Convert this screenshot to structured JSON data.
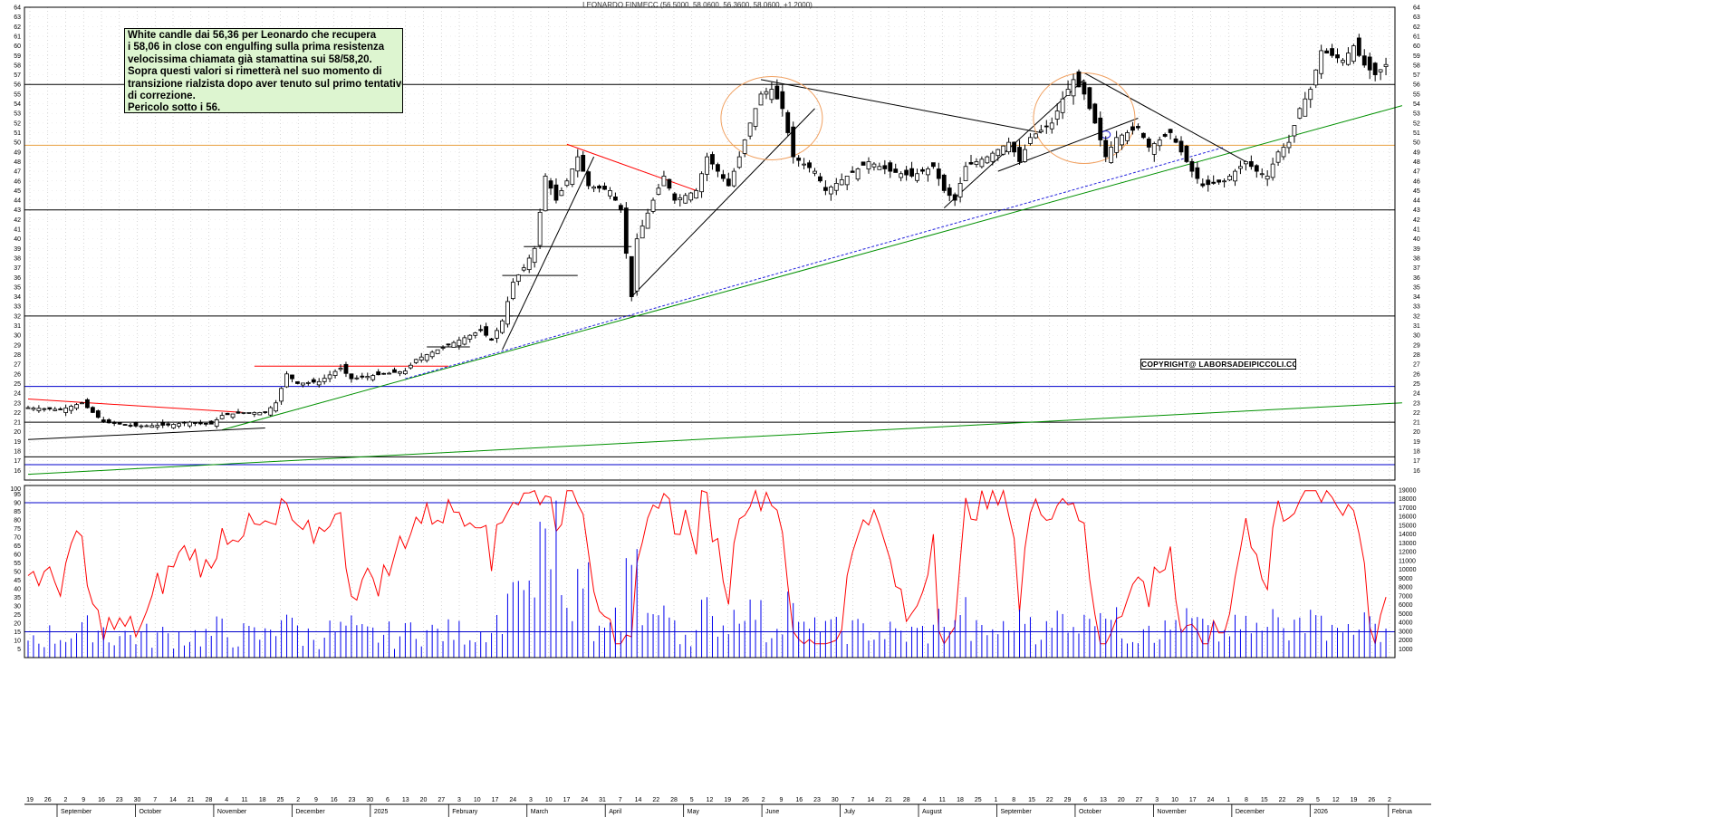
{
  "chart_data": {
    "type": "candlestick",
    "title": "LEONARDO FINMECC (56.5000, 58.0600, 56.3600, 58.0600, +1.2000)",
    "price_axis": {
      "min": 15,
      "max": 64,
      "ticks": [
        16,
        17,
        18,
        19,
        20,
        21,
        22,
        23,
        24,
        25,
        26,
        27,
        28,
        29,
        30,
        31,
        32,
        33,
        34,
        35,
        36,
        37,
        38,
        39,
        40,
        41,
        42,
        43,
        44,
        45,
        46,
        47,
        48,
        49,
        50,
        51,
        52,
        53,
        54,
        55,
        56,
        57,
        58,
        59,
        60,
        61,
        62,
        63,
        64
      ]
    },
    "oscillator_axis": {
      "min": 0,
      "max": 100,
      "ticks": [
        5,
        10,
        15,
        20,
        25,
        30,
        35,
        40,
        45,
        50,
        55,
        60,
        65,
        70,
        75,
        80,
        85,
        90,
        95,
        100
      ],
      "levels": [
        90,
        15
      ]
    },
    "volume_axis": {
      "min": 0,
      "max": 19500,
      "ticks": [
        1000,
        2000,
        3000,
        4000,
        5000,
        6000,
        7000,
        8000,
        9000,
        10000,
        11000,
        12000,
        13000,
        14000,
        15000,
        16000,
        17000,
        18000,
        19000
      ]
    },
    "x_axis": {
      "day_labels": [
        "19",
        "26",
        "2",
        "9",
        "16",
        "23",
        "30",
        "7",
        "14",
        "21",
        "28",
        "4",
        "11",
        "18",
        "25",
        "2",
        "9",
        "16",
        "23",
        "30",
        "6",
        "13",
        "20",
        "27",
        "3",
        "10",
        "17",
        "24",
        "3",
        "10",
        "17",
        "24",
        "31",
        "7",
        "14",
        "22",
        "28",
        "5",
        "12",
        "19",
        "26",
        "2",
        "9",
        "16",
        "23",
        "30",
        "7",
        "14",
        "21",
        "28",
        "4",
        "11",
        "18",
        "25",
        "1",
        "8",
        "15",
        "22",
        "29",
        "6",
        "13",
        "20",
        "27",
        "3",
        "10",
        "17",
        "24",
        "1",
        "8",
        "15",
        "22",
        "29",
        "5",
        "12",
        "19",
        "26",
        "2"
      ],
      "month_labels": [
        "September",
        "October",
        "November",
        "December",
        "2025",
        "February",
        "March",
        "April",
        "May",
        "June",
        "July",
        "August",
        "September",
        "October",
        "November",
        "December",
        "2026",
        "Februa"
      ]
    },
    "horizontal_levels": [
      {
        "value": 56,
        "color": "#000000"
      },
      {
        "value": 49.7,
        "color": "#e8a040"
      },
      {
        "value": 43,
        "color": "#000000"
      },
      {
        "value": 32,
        "color": "#000000"
      },
      {
        "value": 24.7,
        "color": "#0000cc"
      },
      {
        "value": 21,
        "color": "#000000"
      },
      {
        "value": 17.4,
        "color": "#000000"
      },
      {
        "value": 16.6,
        "color": "#0000cc"
      }
    ],
    "price_path": [
      [
        0,
        22.5
      ],
      [
        6,
        22.3
      ],
      [
        10,
        23.0
      ],
      [
        14,
        21.0
      ],
      [
        20,
        20.6
      ],
      [
        26,
        20.7
      ],
      [
        30,
        21.0
      ],
      [
        34,
        20.8
      ],
      [
        36,
        21.7
      ],
      [
        40,
        22.0
      ],
      [
        44,
        22.0
      ],
      [
        46,
        23.0
      ],
      [
        48,
        26.0
      ],
      [
        50,
        25.0
      ],
      [
        54,
        25.2
      ],
      [
        58,
        26.6
      ],
      [
        60,
        25.5
      ],
      [
        66,
        26.0
      ],
      [
        70,
        26.3
      ],
      [
        72,
        27.5
      ],
      [
        76,
        28.5
      ],
      [
        80,
        29.5
      ],
      [
        84,
        30.5
      ],
      [
        86,
        29.5
      ],
      [
        88,
        31.5
      ],
      [
        90,
        35.5
      ],
      [
        92,
        37.0
      ],
      [
        94,
        39.0
      ],
      [
        96,
        46.5
      ],
      [
        98,
        44.0
      ],
      [
        100,
        46.0
      ],
      [
        102,
        48.5
      ],
      [
        104,
        45.5
      ],
      [
        108,
        45.0
      ],
      [
        110,
        43.0
      ],
      [
        112,
        34.0
      ],
      [
        113,
        40.0
      ],
      [
        116,
        44.0
      ],
      [
        118,
        46.5
      ],
      [
        120,
        44.0
      ],
      [
        124,
        45.0
      ],
      [
        126,
        48.5
      ],
      [
        128,
        47.0
      ],
      [
        130,
        45.5
      ],
      [
        132,
        48.5
      ],
      [
        134,
        52.0
      ],
      [
        136,
        55.0
      ],
      [
        138,
        55.5
      ],
      [
        140,
        53.5
      ],
      [
        142,
        48.5
      ],
      [
        146,
        47.0
      ],
      [
        148,
        45.0
      ],
      [
        152,
        46.5
      ],
      [
        156,
        48.0
      ],
      [
        160,
        47.0
      ],
      [
        164,
        46.5
      ],
      [
        168,
        47.5
      ],
      [
        170,
        45.0
      ],
      [
        172,
        44.0
      ],
      [
        174,
        47.5
      ],
      [
        178,
        48.5
      ],
      [
        182,
        50.0
      ],
      [
        184,
        48.0
      ],
      [
        186,
        50.5
      ],
      [
        190,
        52.0
      ],
      [
        192,
        54.5
      ],
      [
        194,
        56.5
      ],
      [
        196,
        55.0
      ],
      [
        198,
        52.0
      ],
      [
        200,
        48.5
      ],
      [
        202,
        50.5
      ],
      [
        206,
        51.5
      ],
      [
        208,
        49.5
      ],
      [
        212,
        51.0
      ],
      [
        214,
        49.0
      ],
      [
        216,
        47.0
      ],
      [
        218,
        45.5
      ],
      [
        222,
        46.0
      ],
      [
        226,
        48.0
      ],
      [
        228,
        47.0
      ],
      [
        230,
        46.5
      ],
      [
        232,
        49.0
      ],
      [
        234,
        50.0
      ],
      [
        236,
        53.5
      ],
      [
        238,
        55.5
      ],
      [
        240,
        59.5
      ],
      [
        244,
        58.5
      ],
      [
        246,
        60.0
      ],
      [
        248,
        58.0
      ],
      [
        250,
        57.0
      ],
      [
        252,
        58.06
      ]
    ],
    "volume_peak": 17800
  },
  "annotation": {
    "lines": [
      "White candle dai 56,36 per Leonardo che recupera",
      "i 58,06 in close  con engulfing sulla prima resistenza",
      "velocissima chiamata già stamattina sui 58/58,20.",
      "Sopra questi valori si rimetterà nel suo momento di",
      "transizione rialzista dopo aver tenuto sul primo tentativo",
      "di correzione.",
      "Pericolo sotto i 56."
    ]
  },
  "copyright": "COPYRIGHT@ LABORSADEIPICCOLI.COM",
  "colors": {
    "up": "#ffffff",
    "down": "#000000",
    "oscillator": "#ff0000",
    "volume": "#0000ee",
    "trend_green": "#009000",
    "trend_red": "#ff0000",
    "circle": "#f0a060",
    "grid": "#bbbbbb"
  }
}
